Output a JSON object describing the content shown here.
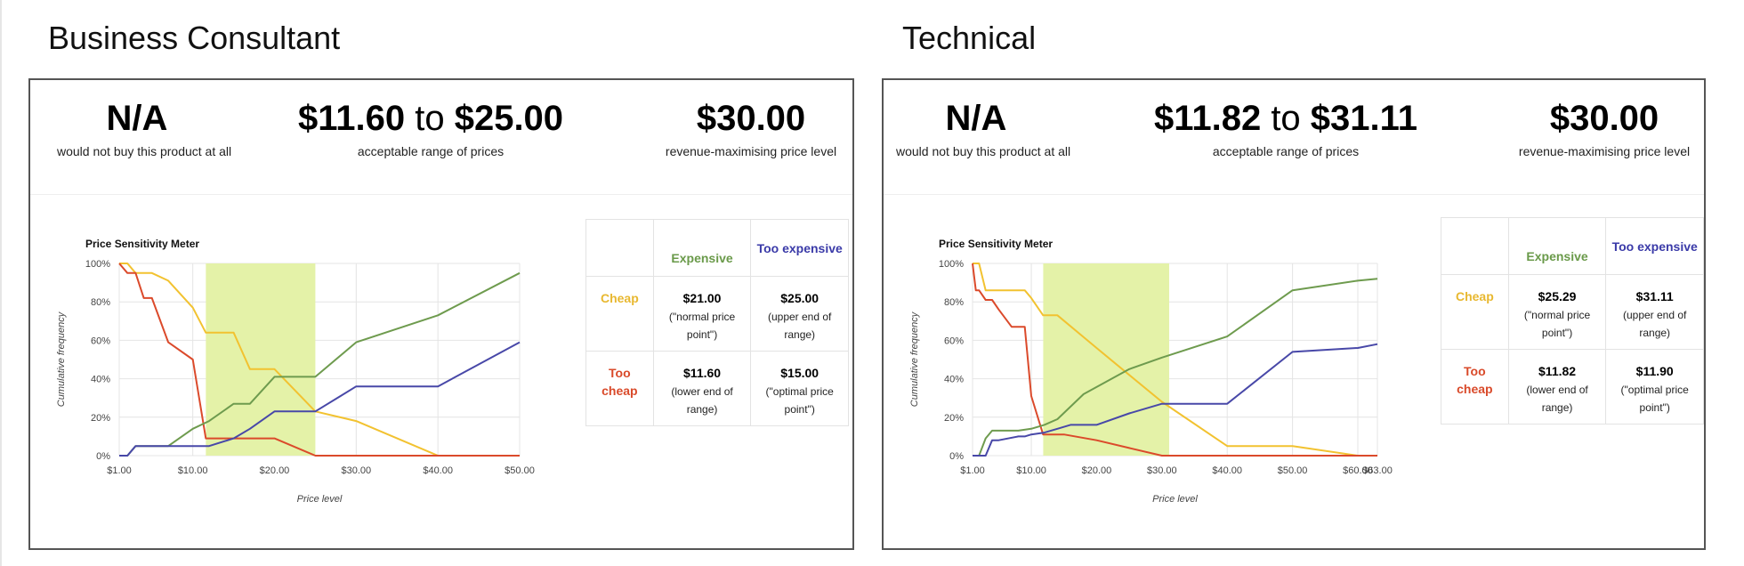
{
  "panels": [
    {
      "heading": "Business Consultant",
      "stats": {
        "na": {
          "value": "N/A",
          "caption": "would not buy this product at all"
        },
        "range": {
          "low": "$11.60",
          "to": "to",
          "high": "$25.00",
          "caption": "acceptable range of prices"
        },
        "revenue": {
          "value": "$30.00",
          "caption": "revenue-maximising price level"
        }
      },
      "table": {
        "col1": "Expensive",
        "col2": "Too expensive",
        "row1": "Cheap",
        "row2": "Too cheap",
        "c11": {
          "value": "$21.00",
          "note": "(\"normal price point\")"
        },
        "c12": {
          "value": "$25.00",
          "note": "(upper end of range)"
        },
        "c21": {
          "value": "$11.60",
          "note": "(lower end of range)"
        },
        "c22": {
          "value": "$15.00",
          "note": "(\"optimal price point\")"
        }
      }
    },
    {
      "heading": "Technical",
      "stats": {
        "na": {
          "value": "N/A",
          "caption": "would not buy this product at all"
        },
        "range": {
          "low": "$11.82",
          "to": "to",
          "high": "$31.11",
          "caption": "acceptable range of prices"
        },
        "revenue": {
          "value": "$30.00",
          "caption": "revenue-maximising price level"
        }
      },
      "table": {
        "col1": "Expensive",
        "col2": "Too expensive",
        "row1": "Cheap",
        "row2": "Too cheap",
        "c11": {
          "value": "$25.29",
          "note": "(\"normal price point\")"
        },
        "c12": {
          "value": "$31.11",
          "note": "(upper end of range)"
        },
        "c21": {
          "value": "$11.82",
          "note": "(lower end of range)"
        },
        "c22": {
          "value": "$11.90",
          "note": "(\"optimal price point\")"
        }
      }
    }
  ],
  "chart_data": [
    {
      "type": "line",
      "title": "Price Sensitivity Meter",
      "xlabel": "Price level",
      "ylabel": "Cumulative frequency",
      "xlim": [
        1,
        50
      ],
      "ylim": [
        0,
        100
      ],
      "x_ticks": [
        1,
        10,
        20,
        30,
        40,
        50
      ],
      "x_tick_labels": [
        "$1.00",
        "$10.00",
        "$20.00",
        "$30.00",
        "$40.00",
        "$50.00"
      ],
      "y_ticks": [
        0,
        20,
        40,
        60,
        80,
        100
      ],
      "y_tick_labels": [
        "0%",
        "20%",
        "40%",
        "60%",
        "80%",
        "100%"
      ],
      "grid": true,
      "acceptable_range": [
        11.6,
        25
      ],
      "range_color": "#e4f2a8",
      "series": [
        {
          "key": "cheap",
          "color": "#f2c230",
          "x": [
            1,
            2,
            3,
            5,
            7,
            10,
            11.6,
            15,
            17,
            20,
            25,
            30,
            40,
            50
          ],
          "y": [
            100,
            100,
            95,
            95,
            91,
            77,
            64,
            64,
            45,
            45,
            23,
            18,
            0,
            0
          ]
        },
        {
          "key": "too_cheap",
          "color": "#db4a2b",
          "x": [
            1,
            2,
            3,
            4,
            5,
            7,
            10,
            11.6,
            15,
            20,
            25,
            30,
            40,
            50
          ],
          "y": [
            100,
            95,
            95,
            82,
            82,
            59,
            50,
            9,
            9,
            9,
            0,
            0,
            0,
            0
          ]
        },
        {
          "key": "expensive",
          "color": "#6e9b4e",
          "x": [
            1,
            2,
            3,
            5,
            7,
            10,
            12,
            15,
            17,
            20,
            25,
            30,
            40,
            50
          ],
          "y": [
            0,
            0,
            5,
            5,
            5,
            14,
            18,
            27,
            27,
            41,
            41,
            59,
            73,
            95
          ]
        },
        {
          "key": "too_expensive",
          "color": "#4848a8",
          "x": [
            1,
            2,
            3,
            5,
            10,
            12,
            15,
            17,
            20,
            25,
            30,
            40,
            50
          ],
          "y": [
            0,
            0,
            5,
            5,
            5,
            5,
            9,
            14,
            23,
            23,
            36,
            36,
            59
          ]
        }
      ]
    },
    {
      "type": "line",
      "title": "Price Sensitivity Meter",
      "xlabel": "Price level",
      "ylabel": "Cumulative frequency",
      "xlim": [
        1,
        63
      ],
      "ylim": [
        0,
        100
      ],
      "x_ticks": [
        1,
        10,
        20,
        30,
        40,
        50,
        60,
        63
      ],
      "x_tick_labels": [
        "$1.00",
        "$10.00",
        "$20.00",
        "$30.00",
        "$40.00",
        "$50.00",
        "$60.00",
        "$63.00"
      ],
      "y_ticks": [
        0,
        20,
        40,
        60,
        80,
        100
      ],
      "y_tick_labels": [
        "0%",
        "20%",
        "40%",
        "60%",
        "80%",
        "100%"
      ],
      "grid": true,
      "acceptable_range": [
        11.82,
        31.11
      ],
      "range_color": "#e4f2a8",
      "series": [
        {
          "key": "cheap",
          "color": "#f2c230",
          "x": [
            1,
            2,
            3,
            5,
            8,
            9,
            10,
            11.8,
            14,
            20,
            25,
            30,
            40,
            50,
            60,
            63
          ],
          "y": [
            100,
            100,
            86,
            86,
            86,
            86,
            82,
            73,
            73,
            56,
            42,
            28,
            5,
            5,
            0,
            0
          ]
        },
        {
          "key": "too_cheap",
          "color": "#db4a2b",
          "x": [
            1,
            1.5,
            2,
            3,
            4,
            5,
            7,
            9,
            10,
            11.8,
            15,
            20,
            25,
            30,
            40,
            63
          ],
          "y": [
            100,
            86,
            86,
            81,
            81,
            76,
            67,
            67,
            31,
            11,
            11,
            8,
            4,
            0,
            0,
            0
          ]
        },
        {
          "key": "expensive",
          "color": "#6e9b4e",
          "x": [
            1,
            2,
            3,
            4,
            5,
            8,
            10,
            12,
            14,
            18,
            25,
            30,
            40,
            50,
            60,
            63
          ],
          "y": [
            0,
            0,
            9,
            13,
            13,
            13,
            14,
            16,
            19,
            32,
            45,
            51,
            62,
            86,
            91,
            92
          ]
        },
        {
          "key": "too_expensive",
          "color": "#4848a8",
          "x": [
            1,
            2,
            3,
            4,
            5,
            8,
            9,
            10,
            12,
            14,
            16,
            20,
            25,
            30,
            40,
            50,
            60,
            63
          ],
          "y": [
            0,
            0,
            0,
            8,
            8,
            10,
            10,
            11,
            12,
            14,
            16,
            16,
            22,
            27,
            27,
            54,
            56,
            58
          ]
        }
      ]
    }
  ]
}
